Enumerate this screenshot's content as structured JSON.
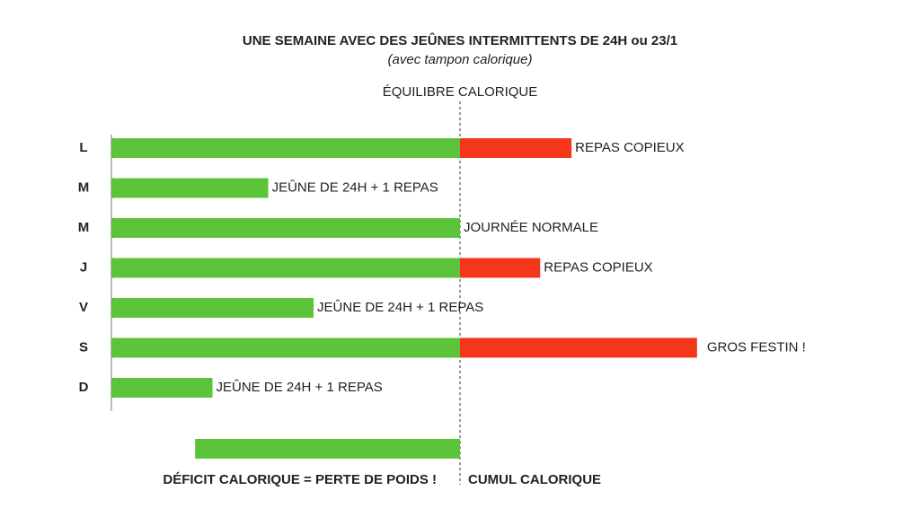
{
  "chart_data": {
    "type": "bar",
    "title": "UNE SEMAINE  AVEC DES JEÛNES INTERMITTENTS DE 24H ou 23/1",
    "subtitle": "(avec tampon calorique)",
    "reference_label": "ÉQUILIBRE CALORIQUE",
    "reference_value": 100,
    "categories": [
      "L",
      "M",
      "M",
      "J",
      "V",
      "S",
      "D"
    ],
    "series": [
      {
        "color": "#5cc43a",
        "values": [
          100,
          45,
          100,
          100,
          58,
          100,
          29
        ]
      },
      {
        "color": "#f4361b",
        "values": [
          32,
          null,
          null,
          23,
          null,
          68,
          null
        ]
      }
    ],
    "annotations": [
      "REPAS COPIEUX",
      "JEÛNE DE 24H + 1 REPAS",
      "JOURNÉE NORMALE",
      "REPAS COPIEUX",
      "JEÛNE DE 24H + 1 REPAS",
      "GROS FESTIN !",
      "JEÛNE DE 24H + 1 REPAS"
    ],
    "deficit": 76,
    "deficit_label": "DÉFICIT CALORIQUE = PERTE DE POIDS !",
    "surplus_label": "CUMUL CALORIQUE",
    "xlim": [
      0,
      200
    ]
  }
}
